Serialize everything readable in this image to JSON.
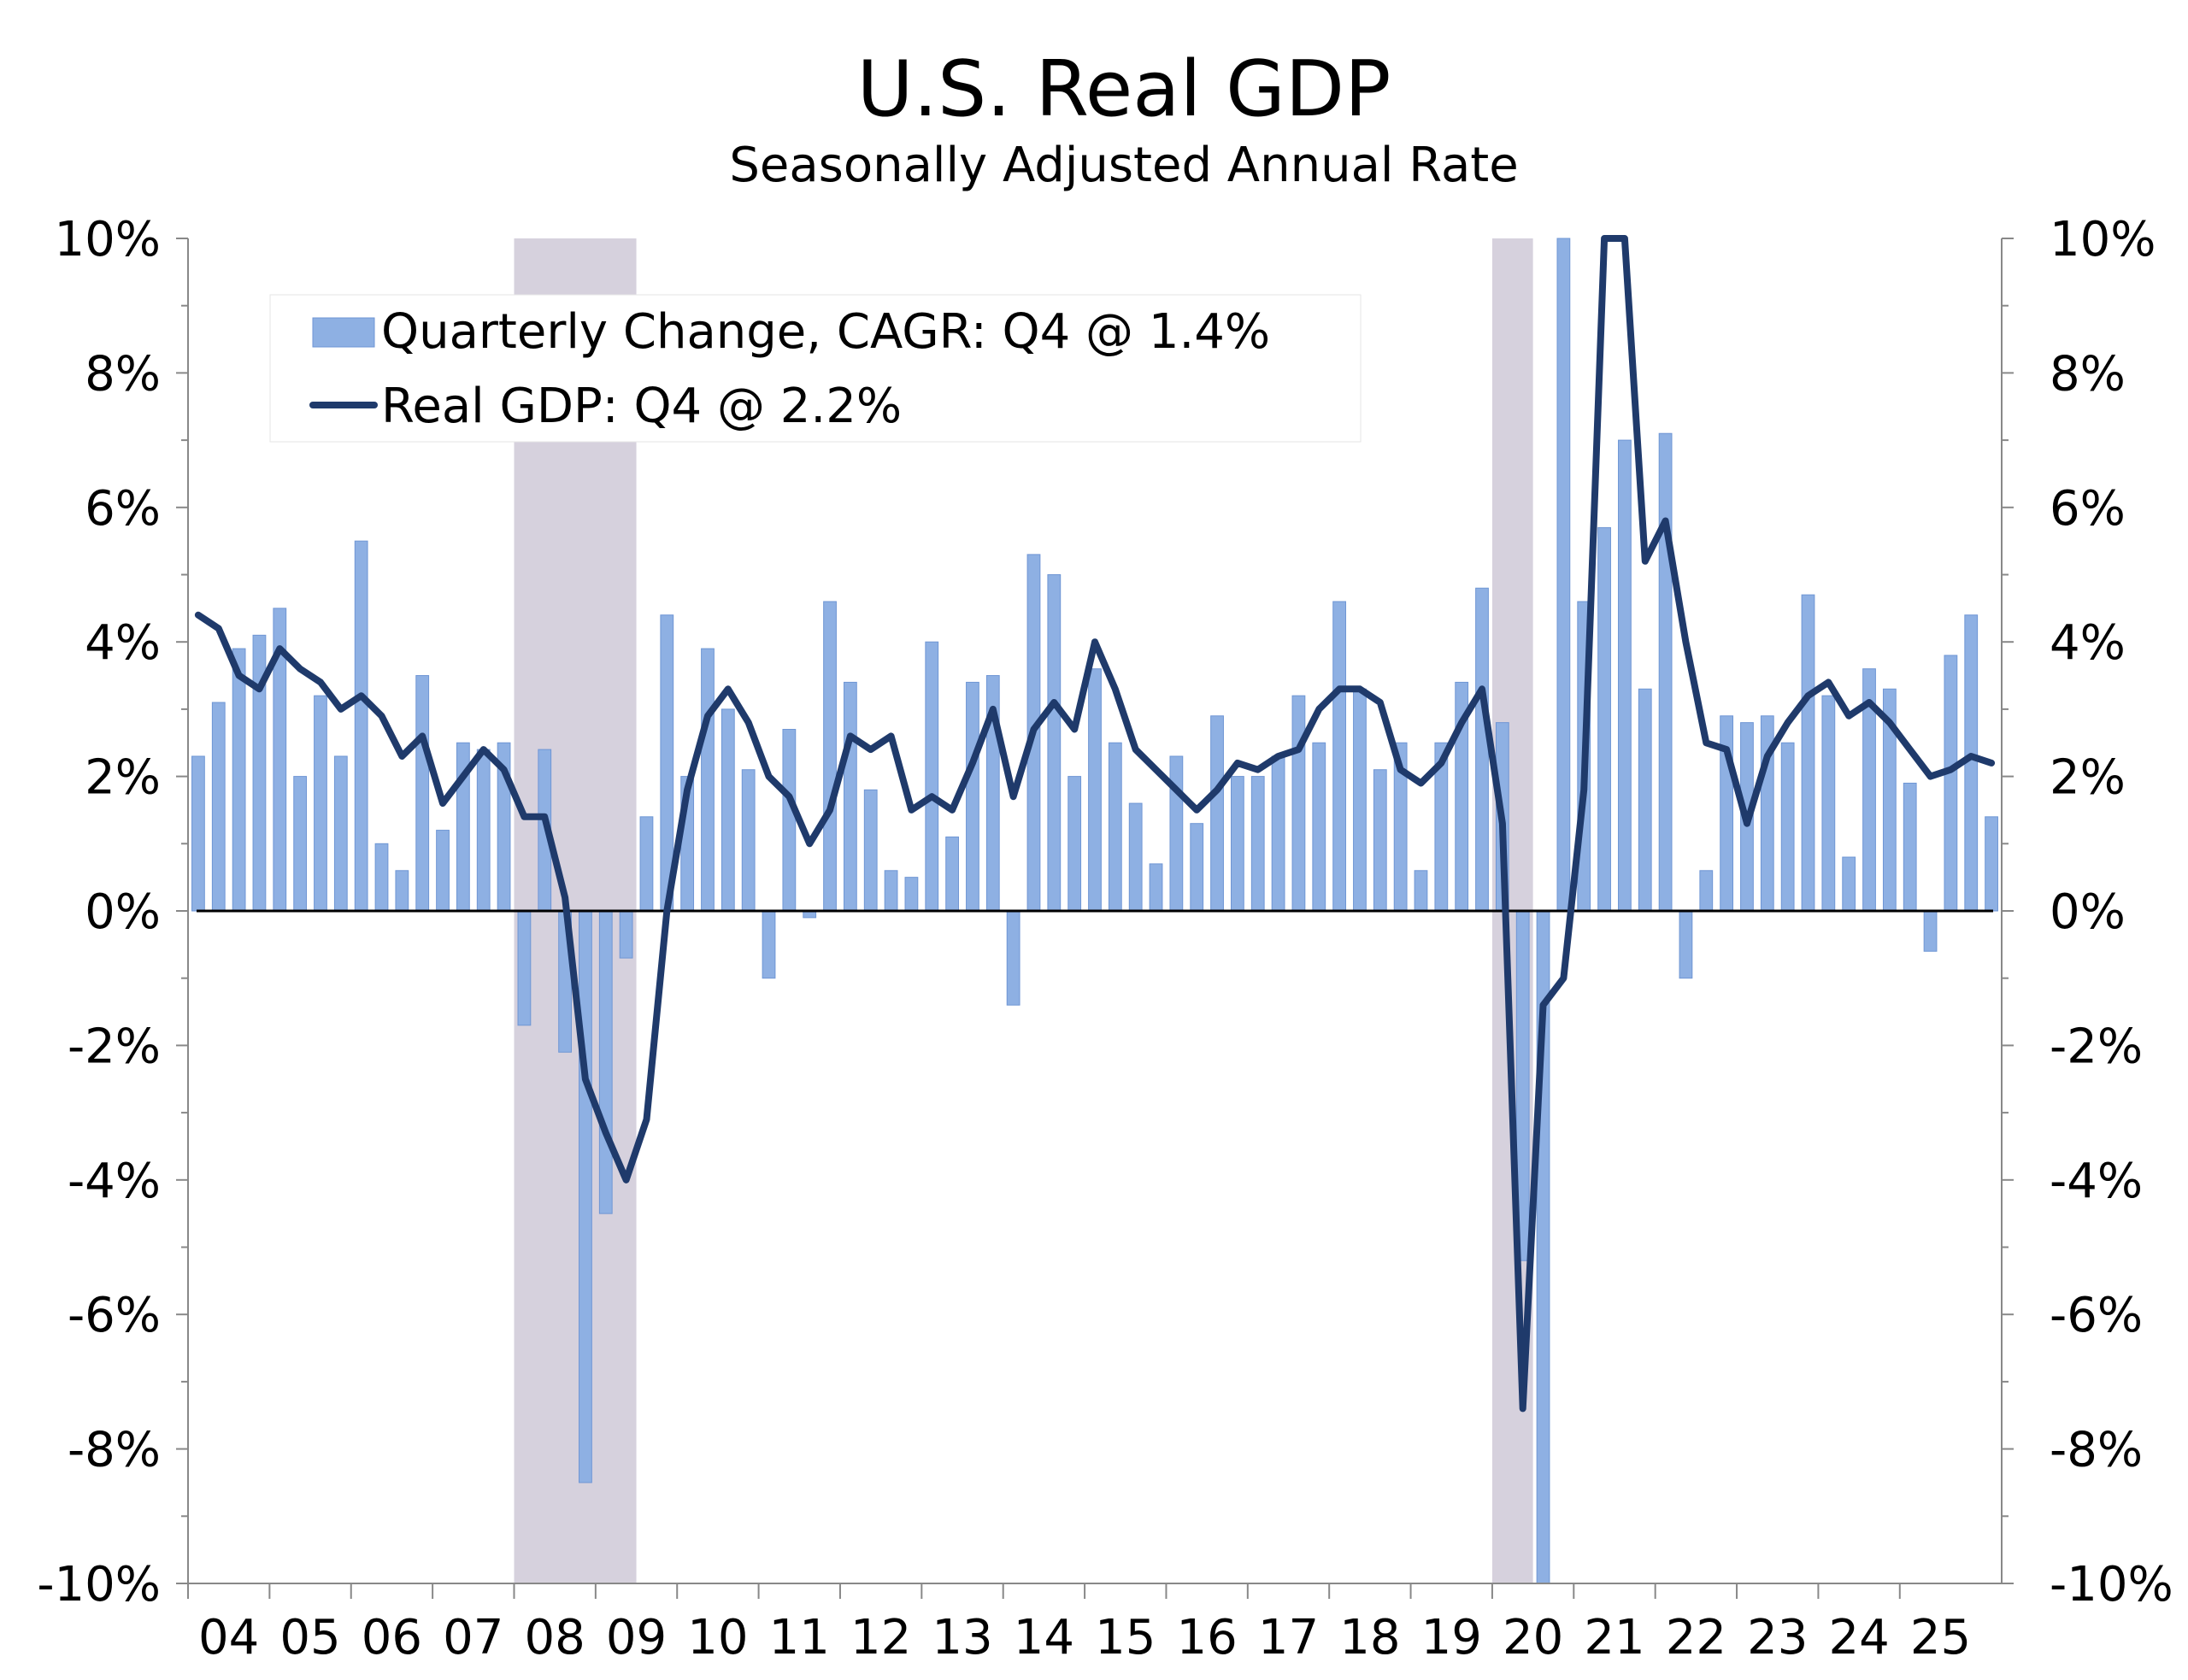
{
  "title": "U.S. Real GDP",
  "subtitle": "Seasonally Adjusted Annual Rate",
  "colors": {
    "bar": "#8EB0E3",
    "bar_stroke": "#6F96D4",
    "line": "#1F3A6B",
    "recession": "#D6D1DD",
    "zero_line": "#000000",
    "legend_bg": "#FFFFFF"
  },
  "chart_data": {
    "type": "bar",
    "x_start": "2004 Q1",
    "frequency": "quarterly",
    "ylim": [
      -10,
      10
    ],
    "y_ticks": [
      "10%",
      "8%",
      "6%",
      "4%",
      "2%",
      "0%",
      "-2%",
      "-4%",
      "-6%",
      "-8%",
      "-10%"
    ],
    "y_ticks_right": [
      "10%",
      "8%",
      "6%",
      "4%",
      "2%",
      "0%",
      "-2%",
      "-4%",
      "-6%",
      "-8%",
      "-10%"
    ],
    "x_tick_labels": [
      "04",
      "05",
      "06",
      "07",
      "08",
      "09",
      "10",
      "11",
      "12",
      "13",
      "14",
      "15",
      "16",
      "17",
      "18",
      "19",
      "20",
      "21",
      "22",
      "23",
      "24",
      "25"
    ],
    "recessions": [
      {
        "start": "2008 Q1",
        "end": "2009 Q2"
      },
      {
        "start": "2020 Q1",
        "end": "2020 Q2"
      }
    ],
    "series": [
      {
        "name": "Quarterly Change, CAGR: Q4 @ 1.4%",
        "type": "bar",
        "values": [
          2.3,
          3.1,
          3.9,
          4.1,
          4.5,
          2.0,
          3.2,
          2.3,
          5.5,
          1.0,
          0.6,
          3.5,
          1.2,
          2.5,
          2.4,
          2.5,
          -1.7,
          2.4,
          -2.1,
          -8.5,
          -4.5,
          -0.7,
          1.4,
          4.4,
          2.0,
          3.9,
          3.0,
          2.1,
          -1.0,
          2.7,
          -0.1,
          4.6,
          3.4,
          1.8,
          0.6,
          0.5,
          4.0,
          1.1,
          3.4,
          3.5,
          -1.4,
          5.3,
          5.0,
          2.0,
          3.6,
          2.5,
          1.6,
          0.7,
          2.3,
          1.3,
          2.9,
          2.0,
          2.0,
          2.3,
          3.2,
          2.5,
          4.6,
          3.3,
          2.1,
          2.5,
          0.6,
          2.5,
          3.4,
          4.8,
          2.8,
          -5.2,
          -10.0,
          10.0,
          4.6,
          5.7,
          7.0,
          3.3,
          7.1,
          -1.0,
          0.6,
          2.9,
          2.8,
          2.9,
          2.5,
          4.7,
          3.2,
          0.8,
          3.6,
          3.3,
          1.9,
          -0.6,
          3.8,
          4.4,
          1.4
        ]
      },
      {
        "name": "Real GDP: Q4 @ 2.2%",
        "type": "line",
        "values": [
          4.4,
          4.2,
          3.5,
          3.3,
          3.9,
          3.6,
          3.4,
          3.0,
          3.2,
          2.9,
          2.3,
          2.6,
          1.6,
          2.0,
          2.4,
          2.1,
          1.4,
          1.4,
          0.2,
          -2.5,
          -3.3,
          -4.0,
          -3.1,
          0.0,
          1.8,
          2.9,
          3.3,
          2.8,
          2.0,
          1.7,
          1.0,
          1.5,
          2.6,
          2.4,
          2.6,
          1.5,
          1.7,
          1.5,
          2.2,
          3.0,
          1.7,
          2.7,
          3.1,
          2.7,
          4.0,
          3.3,
          2.4,
          2.1,
          1.8,
          1.5,
          1.8,
          2.2,
          2.1,
          2.3,
          2.4,
          3.0,
          3.3,
          3.3,
          3.1,
          2.1,
          1.9,
          2.2,
          2.8,
          3.3,
          1.3,
          -7.4,
          -1.4,
          -1.0,
          1.8,
          10.0,
          10.0,
          5.2,
          5.8,
          4.0,
          2.5,
          2.4,
          1.3,
          2.3,
          2.8,
          3.2,
          3.4,
          2.9,
          3.1,
          2.8,
          2.4,
          2.0,
          2.1,
          2.3,
          2.2
        ]
      }
    ],
    "legend": "top-left"
  }
}
